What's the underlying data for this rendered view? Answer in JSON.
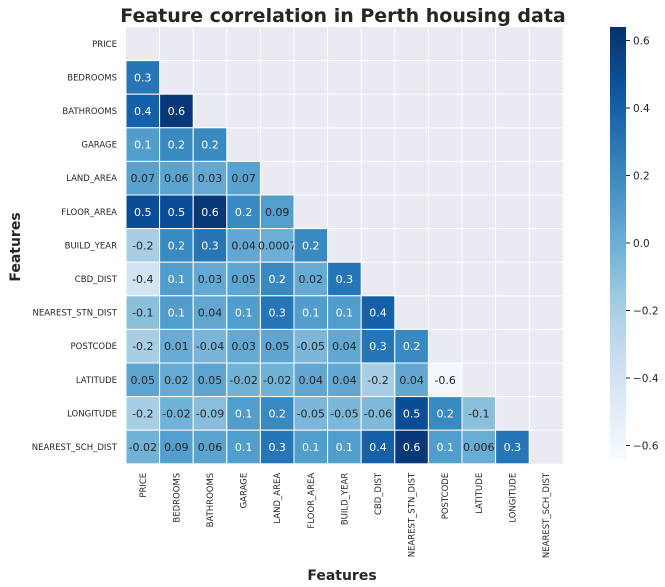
{
  "chart_data": {
    "type": "heatmap",
    "title": "Feature correlation in Perth housing data",
    "xlabel": "Features",
    "ylabel": "Features",
    "labels": [
      "PRICE",
      "BEDROOMS",
      "BATHROOMS",
      "GARAGE",
      "LAND_AREA",
      "FLOOR_AREA",
      "BUILD_YEAR",
      "CBD_DIST",
      "NEAREST_STN_DIST",
      "POSTCODE",
      "LATITUDE",
      "LONGITUDE",
      "NEAREST_SCH_DIST"
    ],
    "matrix_lower": [
      [],
      [
        "0.3"
      ],
      [
        "0.4",
        "0.6"
      ],
      [
        "0.1",
        "0.2",
        "0.2"
      ],
      [
        "0.07",
        "0.06",
        "0.03",
        "0.07"
      ],
      [
        "0.5",
        "0.5",
        "0.6",
        "0.2",
        "0.09"
      ],
      [
        "-0.2",
        "0.2",
        "0.3",
        "0.04",
        "0.0007",
        "0.2"
      ],
      [
        "-0.4",
        "0.1",
        "0.03",
        "0.05",
        "0.2",
        "0.02",
        "0.3"
      ],
      [
        "-0.1",
        "0.1",
        "0.04",
        "0.1",
        "0.3",
        "0.1",
        "0.1",
        "0.4"
      ],
      [
        "-0.2",
        "0.01",
        "-0.04",
        "0.03",
        "0.05",
        "-0.05",
        "0.04",
        "0.3",
        "0.2"
      ],
      [
        "0.05",
        "0.02",
        "0.05",
        "-0.02",
        "-0.02",
        "0.04",
        "0.04",
        "-0.2",
        "0.04",
        "-0.6"
      ],
      [
        "-0.2",
        "-0.02",
        "-0.09",
        "0.1",
        "0.2",
        "-0.05",
        "-0.05",
        "-0.06",
        "0.5",
        "0.2",
        "-0.1"
      ],
      [
        "-0.02",
        "0.09",
        "0.06",
        "0.1",
        "0.3",
        "0.1",
        "0.1",
        "0.4",
        "0.6",
        "0.1",
        "0.006",
        "0.3"
      ]
    ],
    "mask": "upper-triangle",
    "colormap": "Blues",
    "vmin": -0.64,
    "vmax": 0.64,
    "colorbar_ticks": [
      "0.6",
      "0.4",
      "0.2",
      "0.0",
      "−0.2",
      "−0.4",
      "−0.6"
    ],
    "colorbar_tick_values": [
      0.6,
      0.4,
      0.2,
      0.0,
      -0.2,
      -0.4,
      -0.6
    ],
    "background_color": "#eaeaf2",
    "grid_line_color": "#ffffff"
  }
}
